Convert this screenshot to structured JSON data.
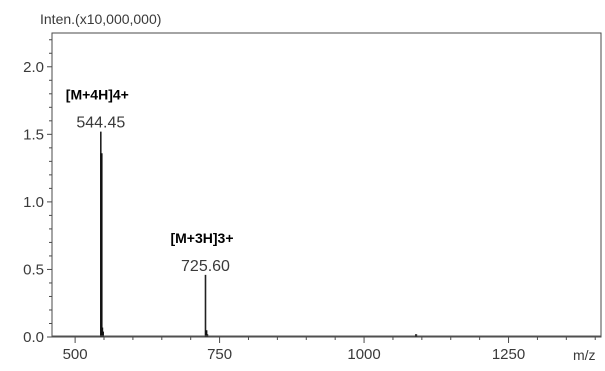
{
  "chart_data": {
    "type": "bar",
    "y_unit_label": "Inten.(x10,000,000)",
    "x_unit_label": "m/z",
    "xlim": [
      460,
      1410
    ],
    "ylim": [
      0,
      2.25
    ],
    "x_ticks": [
      500,
      750,
      1000,
      1250
    ],
    "x_tick_labels": [
      "500",
      "750",
      "1000",
      "1250"
    ],
    "y_ticks": [
      0,
      0.5,
      1.0,
      1.5,
      2.0
    ],
    "y_tick_labels": [
      "0.0",
      "0.5",
      "1.0",
      "1.5",
      "2.0"
    ],
    "grid": false,
    "peaks": [
      {
        "mz": 544.45,
        "intensity": 1.52,
        "mz_label": "544.45",
        "ion_label": "[M+4H]4+"
      },
      {
        "mz": 725.6,
        "intensity": 0.46,
        "mz_label": "725.60",
        "ion_label": "[M+3H]3+"
      }
    ],
    "minor_peaks": [
      {
        "mz": 545.6,
        "intensity": 1.36
      },
      {
        "mz": 546.7,
        "intensity": 0.07
      },
      {
        "mz": 548.0,
        "intensity": 0.04
      },
      {
        "mz": 727.0,
        "intensity": 0.05
      },
      {
        "mz": 728.5,
        "intensity": 0.02
      },
      {
        "mz": 1090.0,
        "intensity": 0.02
      }
    ]
  }
}
